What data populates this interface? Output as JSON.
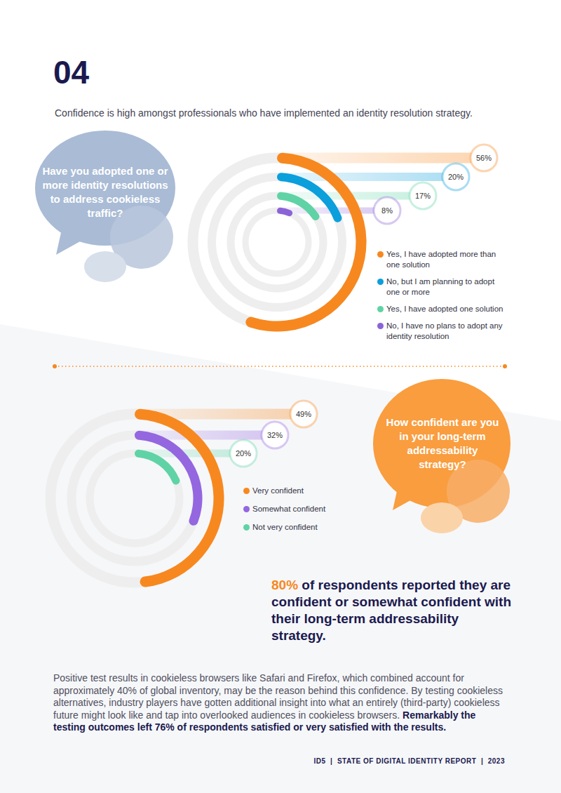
{
  "page": {
    "number": "04",
    "subtitle": "Confidence is high amongst professionals who have implemented an identity resolution strategy.",
    "statement_highlight": "80%",
    "statement": "of respondents reported they are confident or somewhat confident with their long-term addressability strategy.",
    "body": "Positive test results in cookieless browsers like Safari and Firefox, which combined account for approximately 40% of global inventory, may be the reason behind this confidence. By testing cookieless alternatives, industry players have gotten additional insight into what an entirely (third-party) cookieless future might look like and tap into overlooked audiences in cookieless browsers.",
    "body_bold": "Remarkably the testing outcomes left 76% of respondents satisfied or very satisfied with the results.",
    "footer": "ID5  |  STATE OF DIGITAL IDENTITY REPORT  |  2023"
  },
  "chart_data": [
    {
      "type": "radial_bar",
      "title": "Have you adopted one or more identity resolutions to address cookieless traffic?",
      "categories": [
        "Yes, I have adopted more than one solution",
        "No, but I am planning to adopt one or more",
        "Yes, I have adopted one solution",
        "No, I have no plans to adopt any identity resolution"
      ],
      "values": [
        56,
        20,
        17,
        8
      ],
      "value_labels": [
        "56%",
        "20%",
        "17%",
        "8%"
      ],
      "colors": [
        "#f7881f",
        "#0b9fdc",
        "#5fd3a5",
        "#8b63d8"
      ],
      "ylim": [
        0,
        100
      ],
      "data_labels": true,
      "tick_labels": false,
      "legend": "right"
    },
    {
      "type": "radial_bar",
      "title": "How confident are you in your long-term addressability strategy?",
      "categories": [
        "Very confident",
        "Somewhat confident",
        "Not very confident"
      ],
      "values": [
        49,
        32,
        20
      ],
      "value_labels": [
        "49%",
        "32%",
        "20%"
      ],
      "colors": [
        "#f7881f",
        "#9466e0",
        "#5fd3a5"
      ],
      "ylim": [
        0,
        100
      ],
      "data_labels": true,
      "tick_labels": false,
      "legend": "right"
    }
  ]
}
